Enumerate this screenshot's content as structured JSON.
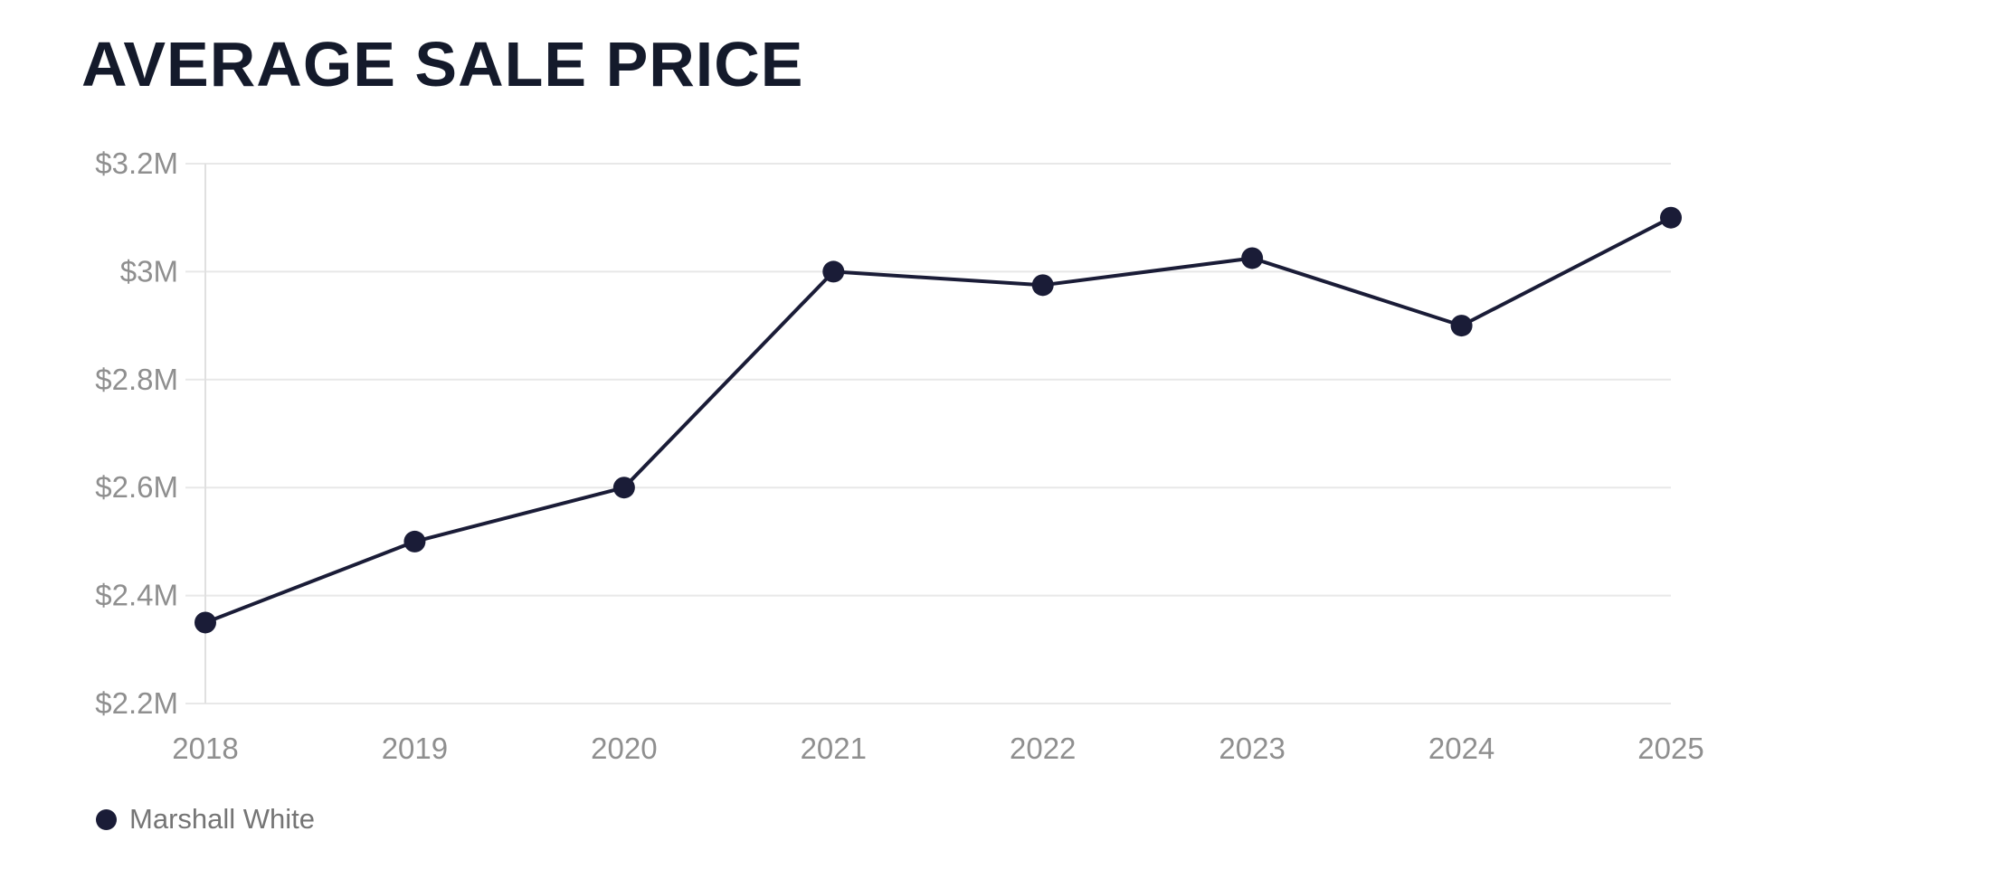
{
  "title": "AVERAGE SALE PRICE",
  "legend": {
    "items": [
      {
        "label": "Marshall White",
        "color": "#1a1c37"
      }
    ]
  },
  "chart_data": {
    "type": "line",
    "title": "AVERAGE SALE PRICE",
    "categories": [
      "2018",
      "2019",
      "2020",
      "2021",
      "2022",
      "2023",
      "2024",
      "2025"
    ],
    "series": [
      {
        "name": "Marshall White",
        "values": [
          2.35,
          2.5,
          2.6,
          3.0,
          2.975,
          3.025,
          2.9,
          3.1
        ]
      }
    ],
    "unit": "millions USD",
    "ylim": [
      2.2,
      3.2
    ],
    "yticks": [
      {
        "value": 3.2,
        "label": "$3.2M"
      },
      {
        "value": 3.0,
        "label": "$3M"
      },
      {
        "value": 2.8,
        "label": "$2.8M"
      },
      {
        "value": 2.6,
        "label": "$2.6M"
      },
      {
        "value": 2.4,
        "label": "$2.4M"
      },
      {
        "value": 2.2,
        "label": "$2.2M"
      }
    ],
    "grid": "horizontal",
    "legend_position": "bottom-left",
    "colors": {
      "line": "#1a1c37",
      "point": "#1a1c37",
      "grid": "#e8e8e8",
      "axis_line": "#e0e0e0",
      "tick_label": "#8f8f8f",
      "title": "#141a2b",
      "legend_text": "#757575"
    }
  }
}
